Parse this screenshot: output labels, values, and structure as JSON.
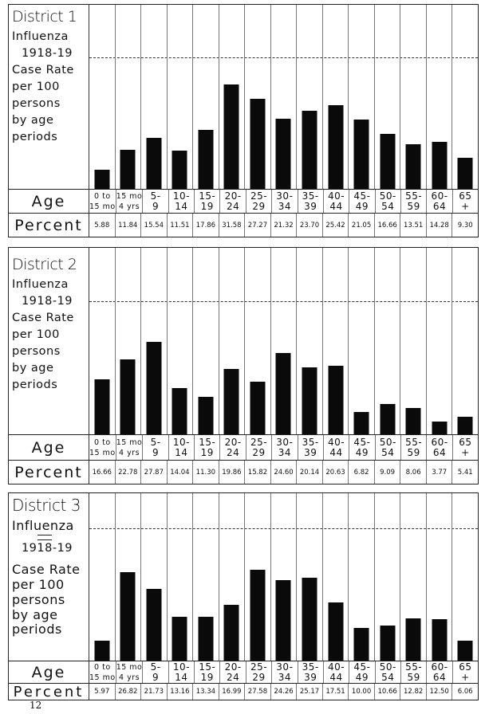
{
  "page_number": "12",
  "age_row_label": "Age",
  "percent_row_label": "Percent",
  "age_groups": [
    {
      "l1": "0 to",
      "l2": "15 mo"
    },
    {
      "l1": "15 mo",
      "l2": "4 yrs"
    },
    {
      "l1": "5-",
      "l2": "9"
    },
    {
      "l1": "10-",
      "l2": "14"
    },
    {
      "l1": "15-",
      "l2": "19"
    },
    {
      "l1": "20-",
      "l2": "24"
    },
    {
      "l1": "25-",
      "l2": "29"
    },
    {
      "l1": "30-",
      "l2": "34"
    },
    {
      "l1": "35-",
      "l2": "39"
    },
    {
      "l1": "40-",
      "l2": "44"
    },
    {
      "l1": "45-",
      "l2": "49"
    },
    {
      "l1": "50-",
      "l2": "54"
    },
    {
      "l1": "55-",
      "l2": "59"
    },
    {
      "l1": "60-",
      "l2": "64"
    },
    {
      "l1": "65",
      "l2": "+"
    }
  ],
  "panels": [
    {
      "title": "District 1",
      "desc": [
        "Influenza",
        "1918-19",
        "Case Rate",
        "per 100",
        "persons",
        "by age",
        "periods"
      ],
      "percent": [
        "5.88",
        "11.84",
        "15.54",
        "11.51",
        "17.86",
        "31.58",
        "27.27",
        "21.32",
        "23.70",
        "25.42",
        "21.05",
        "16.66",
        "13.51",
        "14.28",
        "9.30"
      ]
    },
    {
      "title": "District 2",
      "desc": [
        "Influenza",
        "1918-19",
        "Case Rate",
        "per 100",
        "persons",
        "by age",
        "periods"
      ],
      "percent": [
        "16.66",
        "22.78",
        "27.87",
        "14.04",
        "11.30",
        "19.86",
        "15.82",
        "24.60",
        "20.14",
        "20.63",
        "6.82",
        "9.09",
        "8.06",
        "3.77",
        "5.41"
      ]
    },
    {
      "title": "District 3",
      "desc": [
        "Influenza",
        "1918-19",
        "Case Rate",
        "per 100",
        "persons",
        "by age",
        "periods"
      ],
      "percent": [
        "5.97",
        "26.82",
        "21.73",
        "13.16",
        "13.34",
        "16.99",
        "27.58",
        "24.26",
        "25.17",
        "17.51",
        "10.00",
        "10.66",
        "12.82",
        "12.50",
        "6.06"
      ]
    }
  ],
  "chart_data": [
    {
      "type": "bar",
      "title": "District 1 — Influenza 1918-19 Case Rate per 100 persons by age periods",
      "xlabel": "Age",
      "ylabel": "Percent",
      "categories": [
        "0 to 15 mo",
        "15 mo - 4 yrs",
        "5-9",
        "10-14",
        "15-19",
        "20-24",
        "25-29",
        "30-34",
        "35-39",
        "40-44",
        "45-49",
        "50-54",
        "55-59",
        "60-64",
        "65+"
      ],
      "values": [
        5.88,
        11.84,
        15.54,
        11.51,
        17.86,
        31.58,
        27.27,
        21.32,
        23.7,
        25.42,
        21.05,
        16.66,
        13.51,
        14.28,
        9.3
      ],
      "ylim": [
        0,
        40
      ],
      "reference_line_dashed": 40,
      "grid": false,
      "legend": "none"
    },
    {
      "type": "bar",
      "title": "District 2 — Influenza 1918-19 Case Rate per 100 persons by age periods",
      "xlabel": "Age",
      "ylabel": "Percent",
      "categories": [
        "0 to 15 mo",
        "15 mo - 4 yrs",
        "5-9",
        "10-14",
        "15-19",
        "20-24",
        "25-29",
        "30-34",
        "35-39",
        "40-44",
        "45-49",
        "50-54",
        "55-59",
        "60-64",
        "65+"
      ],
      "values": [
        16.66,
        22.78,
        27.87,
        14.04,
        11.3,
        19.86,
        15.82,
        24.6,
        20.14,
        20.63,
        6.82,
        9.09,
        8.06,
        3.77,
        5.41
      ],
      "ylim": [
        0,
        40
      ],
      "reference_line_dashed": 40,
      "grid": false,
      "legend": "none"
    },
    {
      "type": "bar",
      "title": "District 3 — Influenza 1918-19 Case Rate per 100 persons by age periods",
      "xlabel": "Age",
      "ylabel": "Percent",
      "categories": [
        "0 to 15 mo",
        "15 mo - 4 yrs",
        "5-9",
        "10-14",
        "15-19",
        "20-24",
        "25-29",
        "30-34",
        "35-39",
        "40-44",
        "45-49",
        "50-54",
        "55-59",
        "60-64",
        "65+"
      ],
      "values": [
        5.97,
        26.82,
        21.73,
        13.16,
        13.34,
        16.99,
        27.58,
        24.26,
        25.17,
        17.51,
        10.0,
        10.66,
        12.82,
        12.5,
        6.06
      ],
      "ylim": [
        0,
        40
      ],
      "reference_line_dashed": 40,
      "grid": false,
      "legend": "none"
    }
  ]
}
